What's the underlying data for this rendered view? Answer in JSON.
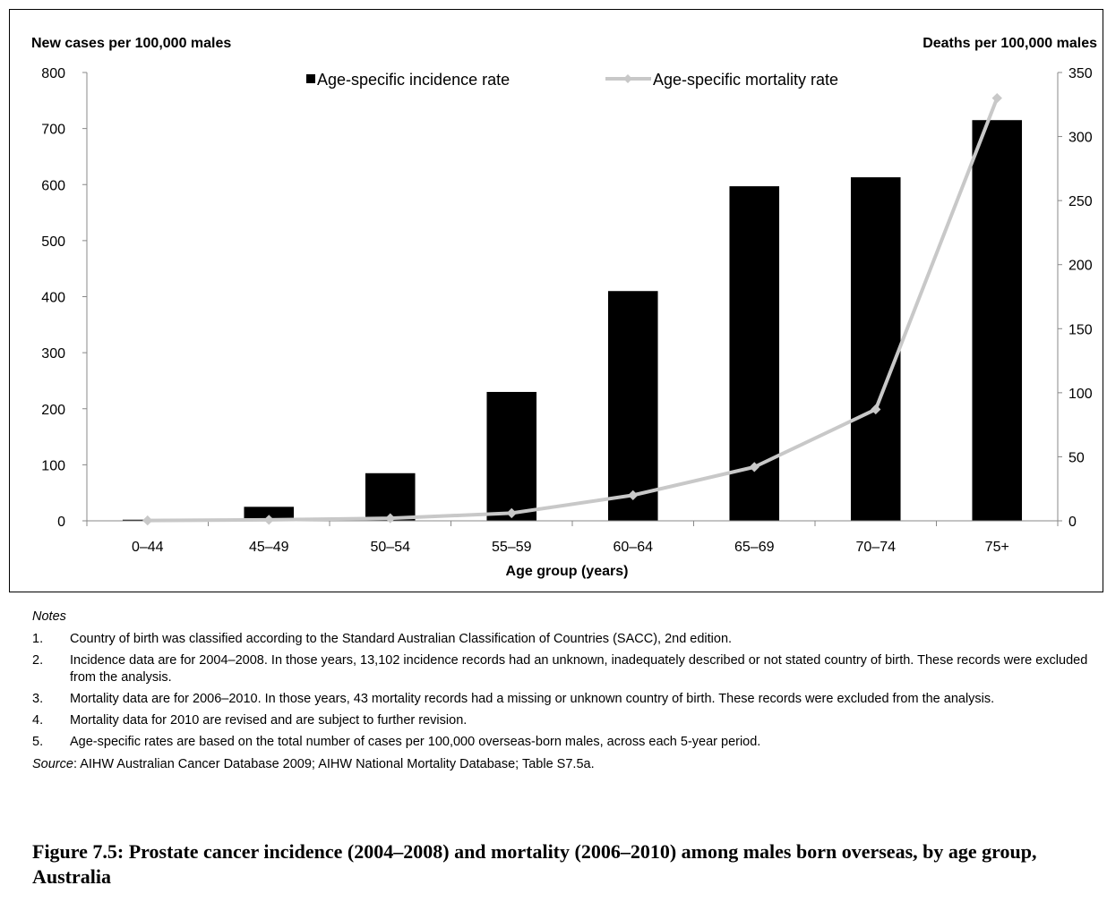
{
  "chart_data": {
    "type": "bar",
    "categories": [
      "0–44",
      "45–49",
      "50–54",
      "55–59",
      "60–64",
      "65–69",
      "70–74",
      "75+"
    ],
    "series": [
      {
        "name": "Age-specific incidence rate",
        "kind": "bar",
        "axis": "left",
        "color": "#000000",
        "values": [
          2,
          25,
          85,
          230,
          410,
          597,
          613,
          715
        ]
      },
      {
        "name": "Age-specific mortality rate",
        "kind": "line",
        "axis": "right",
        "color": "#c8c8c8",
        "values": [
          0.3,
          0.8,
          2,
          6,
          20,
          42,
          87,
          330
        ]
      }
    ],
    "xlabel": "Age group (years)",
    "ylabel_left": "New cases per 100,000 males",
    "ylabel_right": "Deaths per 100,000 males",
    "ylim_left": [
      0,
      800
    ],
    "yticks_left": [
      "0",
      "100",
      "200",
      "300",
      "400",
      "500",
      "600",
      "700",
      "800"
    ],
    "ylim_right": [
      0,
      350
    ],
    "yticks_right": [
      "0",
      "50",
      "100",
      "150",
      "200",
      "250",
      "300",
      "350"
    ],
    "grid": false,
    "legend_position": "top"
  },
  "notes": {
    "heading": "Notes",
    "items": [
      {
        "num": "1.",
        "text": "Country of birth was classified according to the Standard Australian Classification of Countries (SACC), 2nd edition."
      },
      {
        "num": "2.",
        "text": "Incidence data are for 2004–2008. In those years, 13,102 incidence records had an unknown, inadequately described or not stated country of birth. These records were excluded from the analysis."
      },
      {
        "num": "3.",
        "text": "Mortality data are for 2006–2010. In those years, 43 mortality records had a missing or unknown country of birth. These records were excluded from the analysis."
      },
      {
        "num": "4.",
        "text": "Mortality data for 2010 are revised and are subject to further revision."
      },
      {
        "num": "5.",
        "text": "Age-specific rates are based on the total number of cases per 100,000 overseas-born males, across each 5-year period."
      }
    ]
  },
  "source": {
    "label": "Source",
    "text": ": AIHW Australian Cancer Database 2009; AIHW National Mortality Database; Table S7.5a."
  },
  "caption": "Figure 7.5: Prostate cancer incidence (2004–2008) and mortality (2006–2010) among males born overseas, by age group, Australia"
}
